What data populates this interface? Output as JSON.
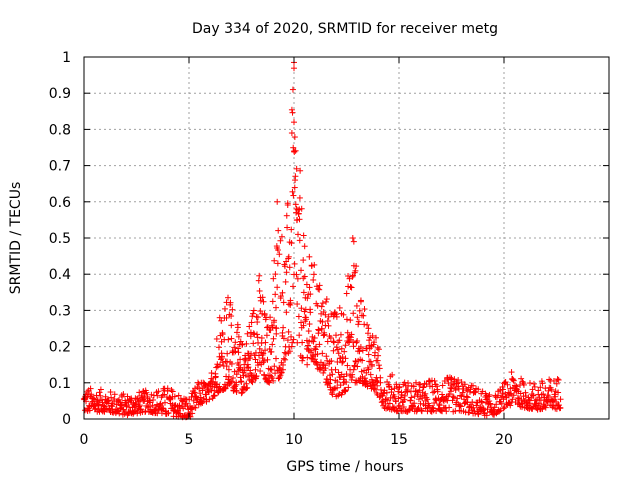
{
  "chart_data": {
    "type": "scatter",
    "title": "Day 334 of 2020, SRMTID for receiver metg",
    "xlabel": "GPS time / hours",
    "ylabel": "SRMTID / TECUs",
    "xlim": [
      0,
      25
    ],
    "ylim": [
      0,
      1
    ],
    "x_ticks": [
      0,
      5,
      10,
      15,
      20
    ],
    "x_tick_labels": [
      "0",
      "5",
      "10",
      "15",
      "20"
    ],
    "y_ticks": [
      0,
      0.1,
      0.2,
      0.3,
      0.4,
      0.5,
      0.6,
      0.7,
      0.8,
      0.9,
      1
    ],
    "y_tick_labels": [
      "0",
      "0.1",
      "0.2",
      "0.3",
      "0.4",
      "0.5",
      "0.6",
      "0.7",
      "0.8",
      "0.9",
      "1"
    ],
    "grid": true,
    "marker": "plus",
    "series": [
      {
        "name": "SRMTID",
        "color": "#ff0000",
        "envelope": [
          {
            "x": 0.0,
            "lo": 0.02,
            "hi": 0.09
          },
          {
            "x": 1.0,
            "lo": 0.02,
            "hi": 0.08
          },
          {
            "x": 2.0,
            "lo": 0.01,
            "hi": 0.07
          },
          {
            "x": 3.0,
            "lo": 0.02,
            "hi": 0.08
          },
          {
            "x": 4.0,
            "lo": 0.01,
            "hi": 0.09
          },
          {
            "x": 5.0,
            "lo": 0.0,
            "hi": 0.06
          },
          {
            "x": 5.5,
            "lo": 0.04,
            "hi": 0.11
          },
          {
            "x": 6.0,
            "lo": 0.05,
            "hi": 0.1
          },
          {
            "x": 6.5,
            "lo": 0.08,
            "hi": 0.33
          },
          {
            "x": 7.0,
            "lo": 0.08,
            "hi": 0.35
          },
          {
            "x": 7.5,
            "lo": 0.07,
            "hi": 0.21
          },
          {
            "x": 8.0,
            "lo": 0.1,
            "hi": 0.3
          },
          {
            "x": 8.3,
            "lo": 0.12,
            "hi": 0.42
          },
          {
            "x": 8.8,
            "lo": 0.1,
            "hi": 0.25
          },
          {
            "x": 9.2,
            "lo": 0.1,
            "hi": 0.6
          },
          {
            "x": 9.6,
            "lo": 0.15,
            "hi": 0.5
          },
          {
            "x": 10.0,
            "lo": 0.2,
            "hi": 0.98
          },
          {
            "x": 10.5,
            "lo": 0.15,
            "hi": 0.48
          },
          {
            "x": 11.0,
            "lo": 0.15,
            "hi": 0.43
          },
          {
            "x": 11.5,
            "lo": 0.1,
            "hi": 0.35
          },
          {
            "x": 12.0,
            "lo": 0.05,
            "hi": 0.3
          },
          {
            "x": 12.5,
            "lo": 0.08,
            "hi": 0.38
          },
          {
            "x": 12.8,
            "lo": 0.1,
            "hi": 0.5
          },
          {
            "x": 13.2,
            "lo": 0.1,
            "hi": 0.33
          },
          {
            "x": 13.8,
            "lo": 0.08,
            "hi": 0.25
          },
          {
            "x": 14.3,
            "lo": 0.03,
            "hi": 0.14
          },
          {
            "x": 15.0,
            "lo": 0.02,
            "hi": 0.11
          },
          {
            "x": 16.0,
            "lo": 0.02,
            "hi": 0.1
          },
          {
            "x": 17.0,
            "lo": 0.02,
            "hi": 0.12
          },
          {
            "x": 18.0,
            "lo": 0.02,
            "hi": 0.11
          },
          {
            "x": 19.0,
            "lo": 0.01,
            "hi": 0.08
          },
          {
            "x": 19.5,
            "lo": 0.01,
            "hi": 0.06
          },
          {
            "x": 20.0,
            "lo": 0.03,
            "hi": 0.1
          },
          {
            "x": 20.5,
            "lo": 0.04,
            "hi": 0.14
          },
          {
            "x": 21.0,
            "lo": 0.03,
            "hi": 0.1
          },
          {
            "x": 22.0,
            "lo": 0.02,
            "hi": 0.11
          },
          {
            "x": 22.7,
            "lo": 0.03,
            "hi": 0.12
          }
        ],
        "notable_points": [
          {
            "x": 10.0,
            "y": 0.985
          },
          {
            "x": 9.95,
            "y": 0.91
          },
          {
            "x": 10.0,
            "y": 0.82
          },
          {
            "x": 9.9,
            "y": 0.79
          },
          {
            "x": 10.0,
            "y": 0.74
          },
          {
            "x": 10.05,
            "y": 0.66
          },
          {
            "x": 9.2,
            "y": 0.6
          },
          {
            "x": 12.8,
            "y": 0.5
          },
          {
            "x": 12.85,
            "y": 0.49
          },
          {
            "x": 10.1,
            "y": 0.57
          },
          {
            "x": 10.15,
            "y": 0.55
          }
        ]
      }
    ]
  }
}
